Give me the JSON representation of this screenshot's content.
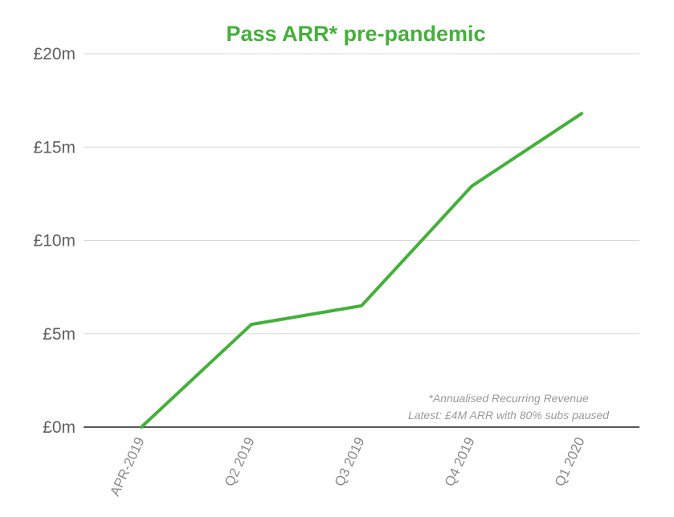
{
  "chart_data": {
    "type": "line",
    "title": "Pass ARR* pre-pandemic",
    "categories": [
      "APR-2019",
      "Q2 2019",
      "Q3 2019",
      "Q4 2019",
      "Q1 2020"
    ],
    "series": [
      {
        "values": [
          0,
          5.5,
          6.5,
          12.9,
          16.8
        ]
      }
    ],
    "ylim": [
      0,
      20
    ],
    "yticks": [
      0,
      5,
      10,
      15,
      20
    ],
    "ytick_labels": [
      "£0m",
      "£5m",
      "£10m",
      "£15m",
      "£20m"
    ],
    "grid": true,
    "line_color": "#44b03a",
    "title_color": "#44b03a",
    "annotation": [
      "*Annualised Recurring Revenue",
      "Latest: £4M ARR with 80% subs paused"
    ]
  }
}
